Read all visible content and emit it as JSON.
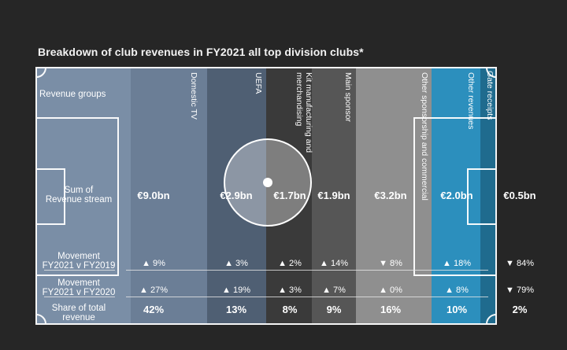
{
  "title": "Breakdown of club revenues in FY2021 all top division clubs*",
  "row_labels": {
    "revenue_groups": "Revenue groups",
    "sum_line1": "Sum of",
    "sum_line2": "Revenue stream",
    "mv19_line1": "Movement",
    "mv19_line2": "FY2021 v FY2019",
    "mv20_line1": "Movement",
    "mv20_line2": "FY2021 v FY2020",
    "share_line1": "Share of total",
    "share_line2": "revenue"
  },
  "colors": {
    "domestic_tv": "#6b7e96",
    "uefa": "#4f5f73",
    "kit": "#3a3a3a",
    "main_sponsor": "#565656",
    "other_sponsorship": "#8f8f8f",
    "other_revenues": "#2c8fbd",
    "gate_receipts": "#1f6b8e",
    "revenue_groups": "#7a8ea6",
    "up_arrow": "#ffffff",
    "down_arrow": "#ffffff"
  },
  "chart_data": {
    "type": "table",
    "columns": [
      {
        "name": "Domestic TV",
        "sum": "€9.0bn",
        "mv19": "▲ 9%",
        "mv20": "▲ 27%",
        "share": "42%"
      },
      {
        "name": "UEFA",
        "sum": "€2.9bn",
        "mv19": "▲ 3%",
        "mv20": "▲ 19%",
        "share": "13%"
      },
      {
        "name": "Kit manufacturing and merchandising",
        "sum": "€1.7bn",
        "mv19": "▲ 2%",
        "mv20": "▲ 3%",
        "share": "8%"
      },
      {
        "name": "Main sponsor",
        "sum": "€1.9bn",
        "mv19": "▲ 14%",
        "mv20": "▲ 7%",
        "share": "9%"
      },
      {
        "name": "Other sponsorship and commercial",
        "sum": "€3.2bn",
        "mv19": "▼ 8%",
        "mv20": "▲ 0%",
        "share": "16%"
      },
      {
        "name": "Other revenues",
        "sum": "€2.0bn",
        "mv19": "▲ 18%",
        "mv20": "▲ 8%",
        "share": "10%"
      },
      {
        "name": "Gate receipts",
        "sum": "€0.5bn",
        "mv19": "▼ 84%",
        "mv20": "▼ 79%",
        "share": "2%"
      }
    ]
  }
}
